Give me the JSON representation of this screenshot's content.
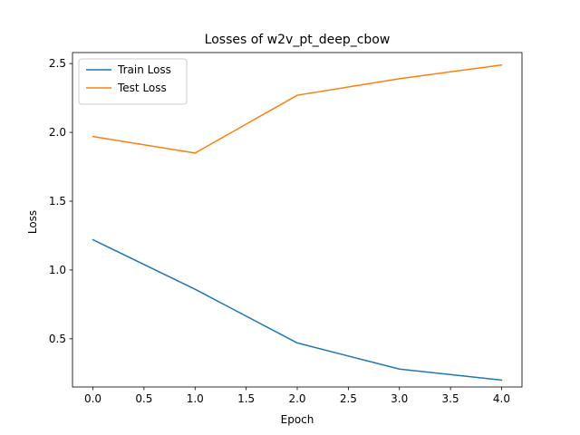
{
  "chart_data": {
    "type": "line",
    "title": "Losses of w2v_pt_deep_cbow",
    "xlabel": "Epoch",
    "ylabel": "Loss",
    "x": [
      0,
      1,
      2,
      3,
      4
    ],
    "xlim": [
      -0.2,
      4.2
    ],
    "ylim": [
      0.15,
      2.58
    ],
    "xticks": [
      0.0,
      0.5,
      1.0,
      1.5,
      2.0,
      2.5,
      3.0,
      3.5,
      4.0
    ],
    "xtick_labels": [
      "0.0",
      "0.5",
      "1.0",
      "1.5",
      "2.0",
      "2.5",
      "3.0",
      "3.5",
      "4.0"
    ],
    "yticks": [
      0.5,
      1.0,
      1.5,
      2.0,
      2.5
    ],
    "ytick_labels": [
      "0.5",
      "1.0",
      "1.5",
      "2.0",
      "2.5"
    ],
    "grid": false,
    "legend_position": "upper-left",
    "series": [
      {
        "name": "Train Loss",
        "color": "#1f77b4",
        "values": [
          1.22,
          0.86,
          0.47,
          0.28,
          0.2
        ]
      },
      {
        "name": "Test Loss",
        "color": "#ff7f0e",
        "values": [
          1.97,
          1.85,
          2.27,
          2.39,
          2.49
        ]
      }
    ]
  }
}
